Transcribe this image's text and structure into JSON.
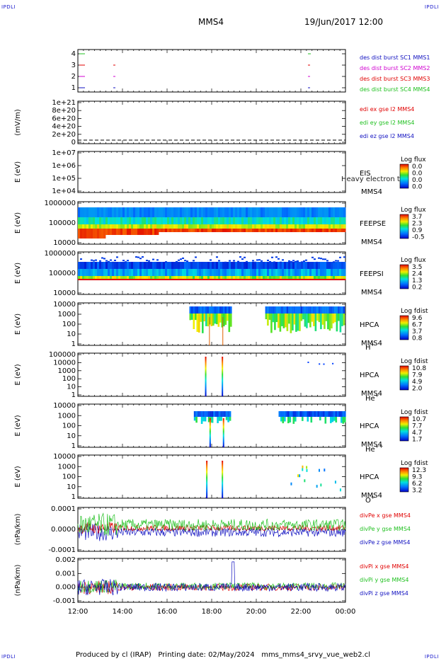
{
  "header": {
    "corner_label": "IPDLI",
    "spacecraft": "MMS4",
    "datetime": "19/Jun/2017 12:00"
  },
  "footer": {
    "produced_by": "Produced by cl (IRAP)",
    "printing_date": "Printing date: 02/May/2024",
    "script": "mms_mms4_srvy_vue_web2.cl"
  },
  "chart_data": {
    "type": "multi-panel time series / spectrogram",
    "x_axis": {
      "ticks": [
        "12:00",
        "14:00",
        "16:00",
        "18:00",
        "20:00",
        "22:00",
        "00:00"
      ],
      "range_hours": [
        12,
        24
      ]
    },
    "panels": [
      {
        "id": "burst",
        "yticks": [
          "4",
          "3",
          "2",
          "1"
        ],
        "legend": [
          {
            "label": "des dist burst SC1 MMS1",
            "color": "#1010c0"
          },
          {
            "label": "des dist burst SC2 MMS2",
            "color": "#d000d0"
          },
          {
            "label": "des dist burst SC3 MMS3",
            "color": "#e00000"
          },
          {
            "label": "des dist burst SC4 MMS4",
            "color": "#20c020"
          }
        ]
      },
      {
        "id": "edi",
        "ylabel": "(mV/m)",
        "yticks": [
          "1e+21",
          "8e+20",
          "6e+20",
          "4e+20",
          "2e+20",
          "0"
        ],
        "legend": [
          {
            "label": "edi ex gse l2 MMS4",
            "color": "#e00000"
          },
          {
            "label": "edi ey gse l2 MMS4",
            "color": "#20c020"
          },
          {
            "label": "edi ez gse l2 MMS4",
            "color": "#1010c0"
          }
        ]
      },
      {
        "id": "eis",
        "ylabel": "E (eV)",
        "yticks": [
          "1e+07",
          "1e+06",
          "1e+05",
          "1e+04"
        ],
        "name": "EIS",
        "sc": "MMS4",
        "overlay": "Heavy electron to",
        "cbar_title": "Log flux",
        "cbar_ticks": [
          "0.0",
          "0.0",
          "0.0",
          "0.0"
        ]
      },
      {
        "id": "feepse",
        "ylabel": "E (eV)",
        "yticks": [
          "1000000",
          "100000",
          "10000"
        ],
        "name": "FEEPSE",
        "sc": "MMS4",
        "cbar_title": "Log flux",
        "cbar_ticks": [
          "3.7",
          "2.3",
          "0.9",
          "-0.5"
        ]
      },
      {
        "id": "feepsi",
        "ylabel": "E (eV)",
        "yticks": [
          "1000000",
          "100000",
          "10000"
        ],
        "name": "FEEPSI",
        "sc": "MMS4",
        "cbar_title": "Log flux",
        "cbar_ticks": [
          "3.5",
          "2.4",
          "1.3",
          "0.2"
        ]
      },
      {
        "id": "hpca_h",
        "ylabel": "E (eV)",
        "yticks": [
          "10000",
          "1000",
          "100",
          "10",
          "1"
        ],
        "name": "HPCA",
        "sc": "MMS4",
        "species": "H",
        "charge": "+",
        "cbar_title": "Log fdist",
        "cbar_ticks": [
          "9.6",
          "6.7",
          "3.7",
          "0.8"
        ]
      },
      {
        "id": "hpca_he",
        "ylabel": "E (eV)",
        "yticks": [
          "100000",
          "10000",
          "1000",
          "100",
          "10",
          "1"
        ],
        "name": "HPCA",
        "sc": "MMS4",
        "species": "He",
        "charge": "+",
        "cbar_title": "Log fdist",
        "cbar_ticks": [
          "10.8",
          "7.9",
          "4.9",
          "2.0"
        ]
      },
      {
        "id": "hpca_hepp",
        "ylabel": "E (eV)",
        "yticks": [
          "10000",
          "1000",
          "100",
          "10",
          "1"
        ],
        "name": "HPCA",
        "sc": "MMS4",
        "species": "He",
        "charge": "++",
        "cbar_title": "Log fdist",
        "cbar_ticks": [
          "10.7",
          "7.7",
          "4.7",
          "1.7"
        ]
      },
      {
        "id": "hpca_o",
        "ylabel": "E (eV)",
        "yticks": [
          "10000",
          "1000",
          "100",
          "10",
          "1"
        ],
        "name": "HPCA",
        "sc": "MMS4",
        "species": "O",
        "charge": "+",
        "cbar_title": "Log fdist",
        "cbar_ticks": [
          "12.3",
          "9.3",
          "6.2",
          "3.2"
        ]
      },
      {
        "id": "divpe",
        "ylabel": "(nPa/km)",
        "yticks": [
          "0.0001",
          "0.0000",
          "-0.0001"
        ],
        "ylim": [
          -0.00015,
          0.00015
        ],
        "legend": [
          {
            "label": "divPe x gse MMS4",
            "color": "#e00000"
          },
          {
            "label": "divPe y gse MMS4",
            "color": "#20c020"
          },
          {
            "label": "divPe z gse MMS4",
            "color": "#1010c0"
          }
        ]
      },
      {
        "id": "divpi",
        "ylabel": "(nPa/km)",
        "yticks": [
          "0.002",
          "0.001",
          "0.000",
          "-0.001"
        ],
        "ylim": [
          -0.0013,
          0.0025
        ],
        "legend": [
          {
            "label": "divPi x gse MMS4",
            "color": "#e00000"
          },
          {
            "label": "divPi y gse MMS4",
            "color": "#20c020"
          },
          {
            "label": "divPi z gse MMS4",
            "color": "#1010c0"
          }
        ]
      }
    ]
  }
}
